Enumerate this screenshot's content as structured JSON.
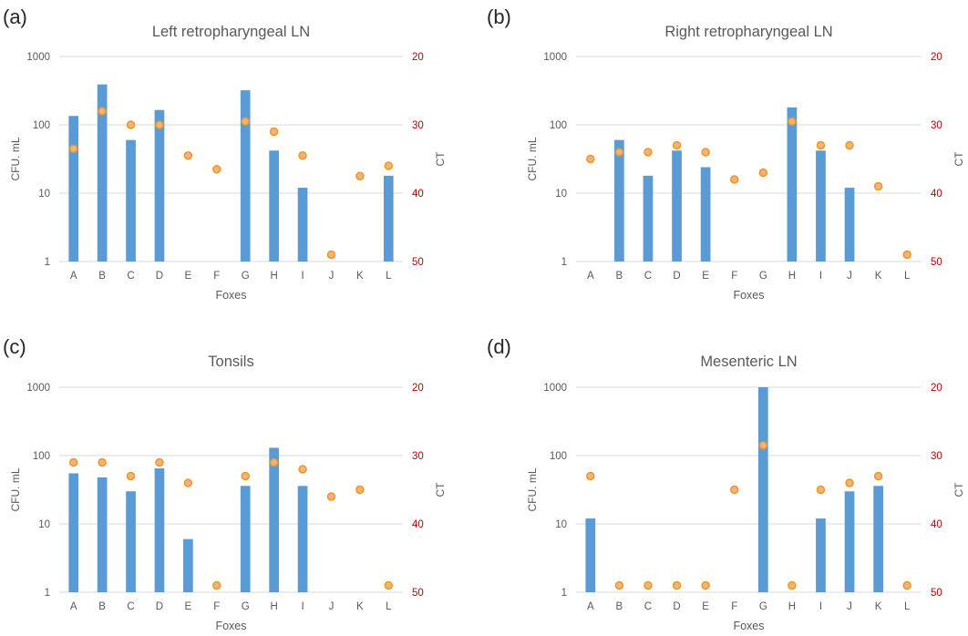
{
  "colors": {
    "bar": "#5b9bd5",
    "dot_fill": "#f4b183",
    "dot_stroke": "#ed9a1a",
    "right_axis_text": "#c00000",
    "axis_text": "#595959",
    "grid": "#d9d9d9"
  },
  "chart_data": [
    {
      "type": "bar",
      "panel_label": "(a)",
      "title": "Left retropharyngeal LN",
      "xlabel": "Foxes",
      "ylabel": "CFU. mL",
      "ylabel_right": "CT",
      "yscale": "log",
      "ylim": [
        1,
        1000
      ],
      "yticks": [
        "1",
        "10",
        "100",
        "1000"
      ],
      "y2lim": [
        50,
        20
      ],
      "y2ticks": [
        "20",
        "30",
        "40",
        "50"
      ],
      "categories": [
        "A",
        "B",
        "C",
        "D",
        "E",
        "F",
        "G",
        "H",
        "I",
        "J",
        "K",
        "L"
      ],
      "bars": [
        135,
        390,
        60,
        165,
        null,
        null,
        320,
        42,
        12,
        null,
        null,
        18
      ],
      "dots": [
        33.5,
        28,
        30,
        30,
        34.5,
        36.5,
        29.5,
        31,
        34.5,
        49,
        37.5,
        36
      ]
    },
    {
      "type": "bar",
      "panel_label": "(b)",
      "title": "Right retropharyngeal LN",
      "xlabel": "Foxes",
      "ylabel": "CFU. mL",
      "ylabel_right": "CT",
      "yscale": "log",
      "ylim": [
        1,
        1000
      ],
      "yticks": [
        "1",
        "10",
        "100",
        "1000"
      ],
      "y2lim": [
        50,
        20
      ],
      "y2ticks": [
        "20",
        "30",
        "40",
        "50"
      ],
      "categories": [
        "A",
        "B",
        "C",
        "D",
        "E",
        "F",
        "G",
        "H",
        "I",
        "J",
        "K",
        "L"
      ],
      "bars": [
        null,
        60,
        18,
        42,
        24,
        null,
        null,
        180,
        42,
        12,
        null,
        null
      ],
      "dots": [
        35,
        34,
        34,
        33,
        34,
        38,
        37,
        29.5,
        33,
        33,
        39,
        49
      ]
    },
    {
      "type": "bar",
      "panel_label": "(c)",
      "title": "Tonsils",
      "xlabel": "Foxes",
      "ylabel": "CFU. mL",
      "ylabel_right": "CT",
      "yscale": "log",
      "ylim": [
        1,
        1000
      ],
      "yticks": [
        "1",
        "10",
        "100",
        "1000"
      ],
      "y2lim": [
        50,
        20
      ],
      "y2ticks": [
        "20",
        "30",
        "40",
        "50"
      ],
      "categories": [
        "A",
        "B",
        "C",
        "D",
        "E",
        "F",
        "G",
        "H",
        "I",
        "J",
        "K",
        "L"
      ],
      "bars": [
        55,
        48,
        30,
        65,
        6,
        null,
        36,
        130,
        36,
        null,
        null,
        null
      ],
      "dots": [
        31,
        31,
        33,
        31,
        34,
        49,
        33,
        31,
        32,
        36,
        35,
        49
      ]
    },
    {
      "type": "bar",
      "panel_label": "(d)",
      "title": "Mesenteric LN",
      "xlabel": "Foxes",
      "ylabel": "CFU. mL",
      "ylabel_right": "CT",
      "yscale": "log",
      "ylim": [
        1,
        1000
      ],
      "yticks": [
        "1",
        "10",
        "100",
        "1000"
      ],
      "y2lim": [
        50,
        20
      ],
      "y2ticks": [
        "20",
        "30",
        "40",
        "50"
      ],
      "categories": [
        "A",
        "B",
        "C",
        "D",
        "E",
        "F",
        "G",
        "H",
        "I",
        "J",
        "K",
        "L"
      ],
      "bars": [
        12,
        null,
        null,
        null,
        null,
        null,
        1000,
        null,
        12,
        30,
        36,
        null
      ],
      "dots": [
        33,
        49,
        49,
        49,
        49,
        35,
        28.5,
        49,
        35,
        34,
        33,
        49
      ]
    }
  ]
}
